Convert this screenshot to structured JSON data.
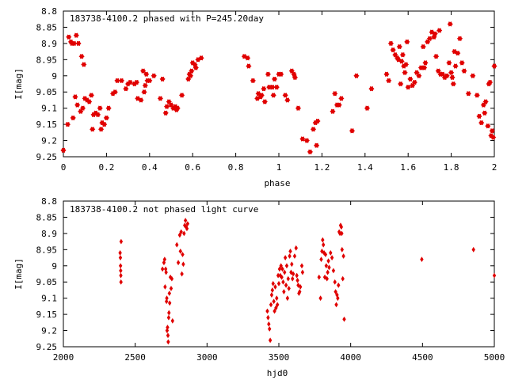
{
  "chart_data": [
    {
      "type": "scatter",
      "title": "183738-4100.2 phased with P=245.20day",
      "xlabel": "phase",
      "ylabel": "I[mag]",
      "xlim": [
        0,
        2
      ],
      "ylim": [
        9.25,
        8.8
      ],
      "y_inverted": true,
      "grid": false,
      "marker": "star",
      "color": "#e00000",
      "xticks": [
        0,
        0.2,
        0.4,
        0.6,
        0.8,
        1,
        1.2,
        1.4,
        1.6,
        1.8,
        2
      ],
      "xtick_labels": [
        "0",
        "0.2",
        "0.4",
        "0.6",
        "0.8",
        "1",
        "1.2",
        "1.4",
        "1.6",
        "1.8",
        "2"
      ],
      "yticks": [
        8.8,
        8.85,
        8.9,
        8.95,
        9,
        9.05,
        9.1,
        9.15,
        9.2,
        9.25
      ],
      "ytick_labels": [
        "8.8",
        "8.85",
        "8.9",
        "8.95",
        "9",
        "9.05",
        "9.1",
        "9.15",
        "9.2",
        "9.25"
      ],
      "points": [
        [
          0.0,
          9.23
        ],
        [
          0.02,
          9.15
        ],
        [
          0.025,
          8.88
        ],
        [
          0.035,
          8.895
        ],
        [
          0.04,
          8.9
        ],
        [
          0.045,
          9.13
        ],
        [
          0.05,
          8.9
        ],
        [
          0.055,
          9.065
        ],
        [
          0.06,
          8.875
        ],
        [
          0.065,
          9.09
        ],
        [
          0.07,
          8.9
        ],
        [
          0.08,
          9.11
        ],
        [
          0.085,
          8.94
        ],
        [
          0.09,
          9.1
        ],
        [
          0.095,
          8.965
        ],
        [
          0.1,
          9.07
        ],
        [
          0.11,
          9.075
        ],
        [
          0.12,
          9.08
        ],
        [
          0.13,
          9.06
        ],
        [
          0.135,
          9.165
        ],
        [
          0.14,
          9.12
        ],
        [
          0.15,
          9.115
        ],
        [
          0.16,
          9.12
        ],
        [
          0.17,
          9.1
        ],
        [
          0.175,
          9.165
        ],
        [
          0.18,
          9.145
        ],
        [
          0.19,
          9.15
        ],
        [
          0.2,
          9.13
        ],
        [
          0.21,
          9.1
        ],
        [
          0.23,
          9.055
        ],
        [
          0.24,
          9.05
        ],
        [
          0.25,
          9.015
        ],
        [
          0.27,
          9.015
        ],
        [
          0.29,
          9.04
        ],
        [
          0.3,
          9.025
        ],
        [
          0.31,
          9.02
        ],
        [
          0.33,
          9.025
        ],
        [
          0.34,
          9.02
        ],
        [
          0.345,
          9.07
        ],
        [
          0.36,
          9.075
        ],
        [
          0.37,
          8.985
        ],
        [
          0.375,
          9.05
        ],
        [
          0.38,
          9.03
        ],
        [
          0.385,
          8.995
        ],
        [
          0.39,
          9.015
        ],
        [
          0.4,
          9.015
        ],
        [
          0.42,
          9.0
        ],
        [
          0.45,
          9.07
        ],
        [
          0.46,
          9.01
        ],
        [
          0.475,
          9.115
        ],
        [
          0.48,
          9.095
        ],
        [
          0.49,
          9.08
        ],
        [
          0.5,
          9.09
        ],
        [
          0.51,
          9.1
        ],
        [
          0.52,
          9.095
        ],
        [
          0.525,
          9.105
        ],
        [
          0.53,
          9.1
        ],
        [
          0.55,
          9.06
        ],
        [
          0.58,
          9.01
        ],
        [
          0.585,
          8.995
        ],
        [
          0.59,
          9.0
        ],
        [
          0.595,
          8.985
        ],
        [
          0.6,
          8.96
        ],
        [
          0.61,
          8.965
        ],
        [
          0.615,
          8.975
        ],
        [
          0.625,
          8.95
        ],
        [
          0.64,
          8.945
        ],
        [
          0.84,
          8.94
        ],
        [
          0.855,
          8.945
        ],
        [
          0.86,
          8.97
        ],
        [
          0.88,
          9.015
        ],
        [
          0.9,
          9.07
        ],
        [
          0.905,
          9.055
        ],
        [
          0.915,
          9.065
        ],
        [
          0.92,
          9.06
        ],
        [
          0.93,
          9.04
        ],
        [
          0.935,
          9.08
        ],
        [
          0.95,
          8.995
        ],
        [
          0.955,
          9.035
        ],
        [
          0.97,
          9.035
        ],
        [
          0.975,
          9.06
        ],
        [
          0.98,
          9.01
        ],
        [
          0.99,
          9.035
        ],
        [
          1.0,
          8.995
        ],
        [
          1.01,
          8.995
        ],
        [
          1.03,
          9.06
        ],
        [
          1.04,
          9.075
        ],
        [
          1.06,
          8.985
        ],
        [
          1.07,
          8.995
        ],
        [
          1.075,
          9.005
        ],
        [
          1.09,
          9.1
        ],
        [
          1.11,
          9.195
        ],
        [
          1.13,
          9.2
        ],
        [
          1.145,
          9.235
        ],
        [
          1.16,
          9.165
        ],
        [
          1.17,
          9.145
        ],
        [
          1.175,
          9.215
        ],
        [
          1.18,
          9.14
        ],
        [
          1.25,
          9.11
        ],
        [
          1.26,
          9.055
        ],
        [
          1.27,
          9.09
        ],
        [
          1.28,
          9.09
        ],
        [
          1.29,
          9.07
        ],
        [
          1.34,
          9.17
        ],
        [
          1.36,
          9.0
        ],
        [
          1.41,
          9.1
        ],
        [
          1.43,
          9.04
        ],
        [
          1.5,
          8.995
        ],
        [
          1.51,
          9.015
        ],
        [
          1.52,
          8.9
        ],
        [
          1.53,
          8.92
        ],
        [
          1.54,
          8.935
        ],
        [
          1.55,
          8.945
        ],
        [
          1.555,
          8.95
        ],
        [
          1.56,
          8.91
        ],
        [
          1.565,
          9.025
        ],
        [
          1.57,
          8.955
        ],
        [
          1.575,
          8.935
        ],
        [
          1.58,
          8.97
        ],
        [
          1.585,
          8.99
        ],
        [
          1.59,
          8.965
        ],
        [
          1.595,
          8.895
        ],
        [
          1.6,
          9.035
        ],
        [
          1.61,
          9.01
        ],
        [
          1.62,
          9.03
        ],
        [
          1.63,
          9.02
        ],
        [
          1.64,
          8.99
        ],
        [
          1.65,
          9.0
        ],
        [
          1.66,
          8.975
        ],
        [
          1.67,
          8.91
        ],
        [
          1.675,
          8.975
        ],
        [
          1.68,
          8.96
        ],
        [
          1.69,
          8.895
        ],
        [
          1.7,
          8.885
        ],
        [
          1.71,
          8.865
        ],
        [
          1.72,
          8.88
        ],
        [
          1.725,
          8.87
        ],
        [
          1.73,
          8.94
        ],
        [
          1.74,
          8.985
        ],
        [
          1.745,
          8.86
        ],
        [
          1.75,
          8.995
        ],
        [
          1.76,
          8.995
        ],
        [
          1.77,
          9.005
        ],
        [
          1.78,
          9.0
        ],
        [
          1.79,
          8.96
        ],
        [
          1.795,
          8.84
        ],
        [
          1.8,
          8.99
        ],
        [
          1.805,
          9.005
        ],
        [
          1.81,
          9.025
        ],
        [
          1.815,
          8.925
        ],
        [
          1.82,
          8.97
        ],
        [
          1.83,
          8.93
        ],
        [
          1.84,
          8.885
        ],
        [
          1.85,
          8.96
        ],
        [
          1.86,
          8.985
        ],
        [
          1.88,
          9.055
        ],
        [
          1.9,
          9.0
        ],
        [
          1.92,
          9.06
        ],
        [
          1.93,
          9.125
        ],
        [
          1.94,
          9.145
        ],
        [
          1.95,
          9.09
        ],
        [
          1.955,
          9.115
        ],
        [
          1.96,
          9.08
        ],
        [
          1.97,
          9.155
        ],
        [
          1.975,
          9.025
        ],
        [
          1.98,
          9.02
        ],
        [
          1.985,
          9.185
        ],
        [
          1.99,
          9.17
        ],
        [
          1.995,
          9.19
        ],
        [
          2.0,
          8.97
        ]
      ]
    },
    {
      "type": "scatter",
      "title": "183738-4100.2 not phased light curve",
      "xlabel": "hjd0",
      "ylabel": "I[mag]",
      "xlim": [
        2000,
        5000
      ],
      "ylim": [
        9.25,
        8.8
      ],
      "y_inverted": true,
      "grid": false,
      "marker": "diamond",
      "color": "#e00000",
      "xticks": [
        2000,
        2500,
        3000,
        3500,
        4000,
        4500,
        5000
      ],
      "xtick_labels": [
        "2000",
        "2500",
        "3000",
        "3500",
        "4000",
        "4500",
        "5000"
      ],
      "yticks": [
        8.8,
        8.85,
        8.9,
        8.95,
        9,
        9.05,
        9.1,
        9.15,
        9.2,
        9.25
      ],
      "ytick_labels": [
        "8.8",
        "8.85",
        "8.9",
        "8.95",
        "9",
        "9.05",
        "9.1",
        "9.15",
        "9.2",
        "9.25"
      ],
      "points": [
        [
          2395,
          8.96
        ],
        [
          2397,
          8.975
        ],
        [
          2398,
          9.0
        ],
        [
          2399,
          9.015
        ],
        [
          2400,
          9.03
        ],
        [
          2401,
          9.05
        ],
        [
          2402,
          8.925
        ],
        [
          2690,
          9.01
        ],
        [
          2700,
          8.99
        ],
        [
          2705,
          8.98
        ],
        [
          2708,
          9.065
        ],
        [
          2712,
          9.01
        ],
        [
          2715,
          9.02
        ],
        [
          2718,
          9.11
        ],
        [
          2720,
          9.1
        ],
        [
          2722,
          9.2
        ],
        [
          2725,
          9.19
        ],
        [
          2728,
          9.215
        ],
        [
          2730,
          9.235
        ],
        [
          2733,
          9.16
        ],
        [
          2735,
          9.145
        ],
        [
          2738,
          9.085
        ],
        [
          2740,
          9.115
        ],
        [
          2745,
          9.035
        ],
        [
          2750,
          9.07
        ],
        [
          2755,
          9.04
        ],
        [
          2760,
          9.17
        ],
        [
          2790,
          8.935
        ],
        [
          2800,
          8.99
        ],
        [
          2810,
          8.905
        ],
        [
          2815,
          8.955
        ],
        [
          2820,
          8.895
        ],
        [
          2825,
          9.025
        ],
        [
          2830,
          8.965
        ],
        [
          2835,
          8.995
        ],
        [
          2840,
          8.9
        ],
        [
          2845,
          8.875
        ],
        [
          2850,
          8.86
        ],
        [
          2855,
          8.88
        ],
        [
          2860,
          8.885
        ],
        [
          2865,
          8.87
        ],
        [
          3420,
          9.14
        ],
        [
          3425,
          9.16
        ],
        [
          3430,
          9.18
        ],
        [
          3435,
          9.195
        ],
        [
          3440,
          9.23
        ],
        [
          3445,
          9.12
        ],
        [
          3450,
          9.09
        ],
        [
          3455,
          9.075
        ],
        [
          3460,
          9.055
        ],
        [
          3465,
          9.11
        ],
        [
          3470,
          9.14
        ],
        [
          3475,
          9.065
        ],
        [
          3480,
          9.13
        ],
        [
          3485,
          9.1
        ],
        [
          3490,
          9.12
        ],
        [
          3495,
          9.03
        ],
        [
          3500,
          9.055
        ],
        [
          3505,
          9.01
        ],
        [
          3510,
          9.03
        ],
        [
          3515,
          9.0
        ],
        [
          3520,
          9.035
        ],
        [
          3525,
          9.01
        ],
        [
          3530,
          9.05
        ],
        [
          3535,
          9.08
        ],
        [
          3540,
          9.02
        ],
        [
          3545,
          8.975
        ],
        [
          3550,
          9.06
        ],
        [
          3555,
          9.0
        ],
        [
          3560,
          9.1
        ],
        [
          3565,
          9.04
        ],
        [
          3570,
          9.07
        ],
        [
          3575,
          8.97
        ],
        [
          3580,
          8.955
        ],
        [
          3585,
          9.02
        ],
        [
          3590,
          8.995
        ],
        [
          3595,
          9.04
        ],
        [
          3600,
          9.025
        ],
        [
          3610,
          8.97
        ],
        [
          3620,
          8.945
        ],
        [
          3625,
          9.03
        ],
        [
          3630,
          9.045
        ],
        [
          3635,
          9.06
        ],
        [
          3640,
          9.085
        ],
        [
          3645,
          9.08
        ],
        [
          3650,
          9.065
        ],
        [
          3660,
          9.0
        ],
        [
          3665,
          9.02
        ],
        [
          3780,
          9.035
        ],
        [
          3790,
          9.1
        ],
        [
          3795,
          8.98
        ],
        [
          3800,
          8.955
        ],
        [
          3805,
          8.92
        ],
        [
          3810,
          8.935
        ],
        [
          3815,
          8.96
        ],
        [
          3820,
          9.035
        ],
        [
          3825,
          8.965
        ],
        [
          3830,
          9.0
        ],
        [
          3835,
          9.04
        ],
        [
          3840,
          9.02
        ],
        [
          3845,
          8.985
        ],
        [
          3850,
          9.005
        ],
        [
          3860,
          8.96
        ],
        [
          3870,
          8.975
        ],
        [
          3880,
          9.015
        ],
        [
          3890,
          9.05
        ],
        [
          3895,
          9.08
        ],
        [
          3900,
          9.12
        ],
        [
          3905,
          9.09
        ],
        [
          3910,
          9.1
        ],
        [
          3915,
          9.06
        ],
        [
          3920,
          8.895
        ],
        [
          3925,
          8.9
        ],
        [
          3930,
          8.875
        ],
        [
          3935,
          8.88
        ],
        [
          3938,
          8.9
        ],
        [
          3940,
          8.95
        ],
        [
          3945,
          9.04
        ],
        [
          3950,
          8.97
        ],
        [
          3955,
          9.165
        ],
        [
          4495,
          8.98
        ],
        [
          4855,
          8.95
        ],
        [
          5000,
          9.03
        ]
      ]
    }
  ]
}
